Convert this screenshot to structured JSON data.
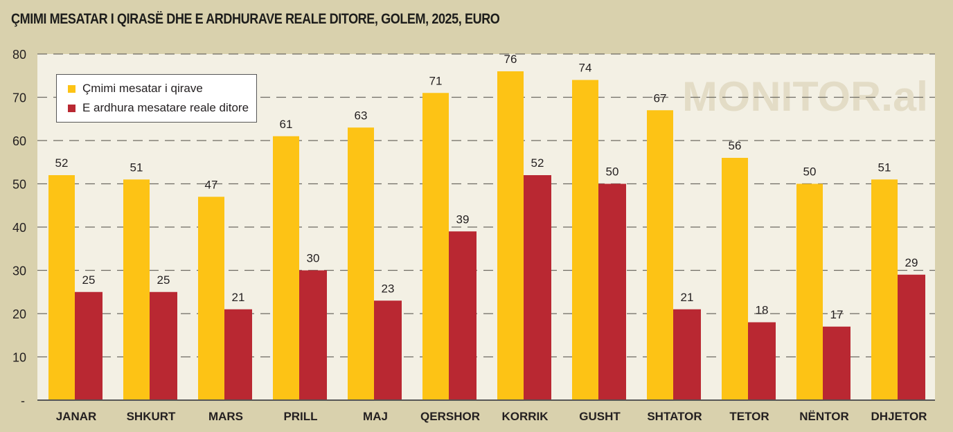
{
  "title": "ÇMIMI MESATAR I QIRASË DHE E ARDHURAVE REALE DITORE, GOLEM, 2025, EURO",
  "watermark": "MONITOR.al",
  "colors": {
    "background": "#d9d1ad",
    "plot": "#f3f0e4",
    "rent": "#fdc315",
    "income": "#b92832"
  },
  "chart_data": {
    "type": "bar",
    "title": "ÇMIMI MESATAR I QIRASË DHE E ARDHURAVE REALE DITORE, GOLEM, 2025, EURO",
    "xlabel": "",
    "ylabel": "",
    "ylim": [
      0,
      80
    ],
    "yticks": [
      {
        "v": 0,
        "label": "-"
      },
      {
        "v": 10,
        "label": "10"
      },
      {
        "v": 20,
        "label": "20"
      },
      {
        "v": 30,
        "label": "30"
      },
      {
        "v": 40,
        "label": "40"
      },
      {
        "v": 50,
        "label": "50"
      },
      {
        "v": 60,
        "label": "60"
      },
      {
        "v": 70,
        "label": "70"
      },
      {
        "v": 80,
        "label": "80"
      }
    ],
    "grid": true,
    "legend_position": "top-left",
    "categories": [
      "JANAR",
      "SHKURT",
      "MARS",
      "PRILL",
      "MAJ",
      "QERSHOR",
      "KORRIK",
      "GUSHT",
      "SHTATOR",
      "TETOR",
      "NËNTOR",
      "DHJETOR"
    ],
    "series": [
      {
        "name": "Çmimi mesatar i qirave",
        "values": [
          52,
          51,
          47,
          61,
          63,
          71,
          76,
          74,
          67,
          56,
          50,
          51
        ]
      },
      {
        "name": "E ardhura mesatare reale ditore",
        "values": [
          25,
          25,
          21,
          30,
          23,
          39,
          52,
          50,
          21,
          18,
          17,
          29
        ]
      }
    ]
  }
}
